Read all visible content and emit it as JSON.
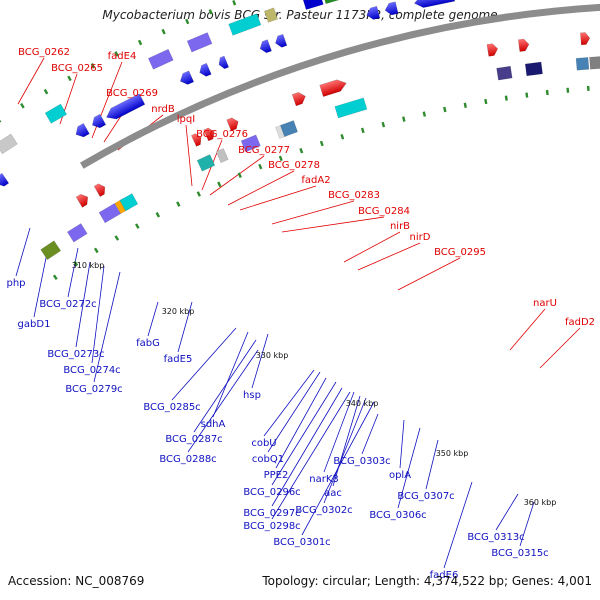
{
  "title": "Mycobacterium bovis BCG str. Pasteur 1173P2, complete genome",
  "footer": {
    "accession": "Accession: NC_008769",
    "stats": "Topology: circular; Length: 4,374,522 bp; Genes: 4,001"
  },
  "colors": {
    "forward_label": "#e00000",
    "reverse_label": "#1010c0",
    "backbone": "#8c8c8c",
    "gene_forward": "#ff1a1a",
    "gene_reverse": "#1a1aff",
    "tick": "#2e8b2e"
  },
  "kbp_ticks": [
    "310 kbp",
    "320 kbp",
    "330 kbp",
    "340 kbp",
    "350 kbp",
    "360 kbp"
  ],
  "forward_labels": [
    "BCG_0262",
    "BCG_0265",
    "fadE4",
    "BCG_0269",
    "nrdB",
    "lpqI",
    "BCG_0276",
    "BCG_0277",
    "BCG_0278",
    "fadA2",
    "BCG_0283",
    "BCG_0284",
    "nirB",
    "nirD",
    "BCG_0295",
    "narU",
    "fadD2"
  ],
  "reverse_labels": [
    "php",
    "gabD1",
    "BCG_0272c",
    "BCG_0273c",
    "BCG_0274c",
    "BCG_0279c",
    "fabG",
    "fadE5",
    "BCG_0285c",
    "sdhA",
    "BCG_0287c",
    "BCG_0288c",
    "hsp",
    "cobU",
    "cobQ1",
    "PPE2",
    "BCG_0296c",
    "narK3",
    "aac",
    "BCG_0297c",
    "BCG_0298c",
    "BCG_0301c",
    "BCG_0302c",
    "BCG_0303c",
    "oplA",
    "BCG_0306c",
    "BCG_0307c",
    "fadE6",
    "BCG_0313c",
    "BCG_0315c"
  ]
}
